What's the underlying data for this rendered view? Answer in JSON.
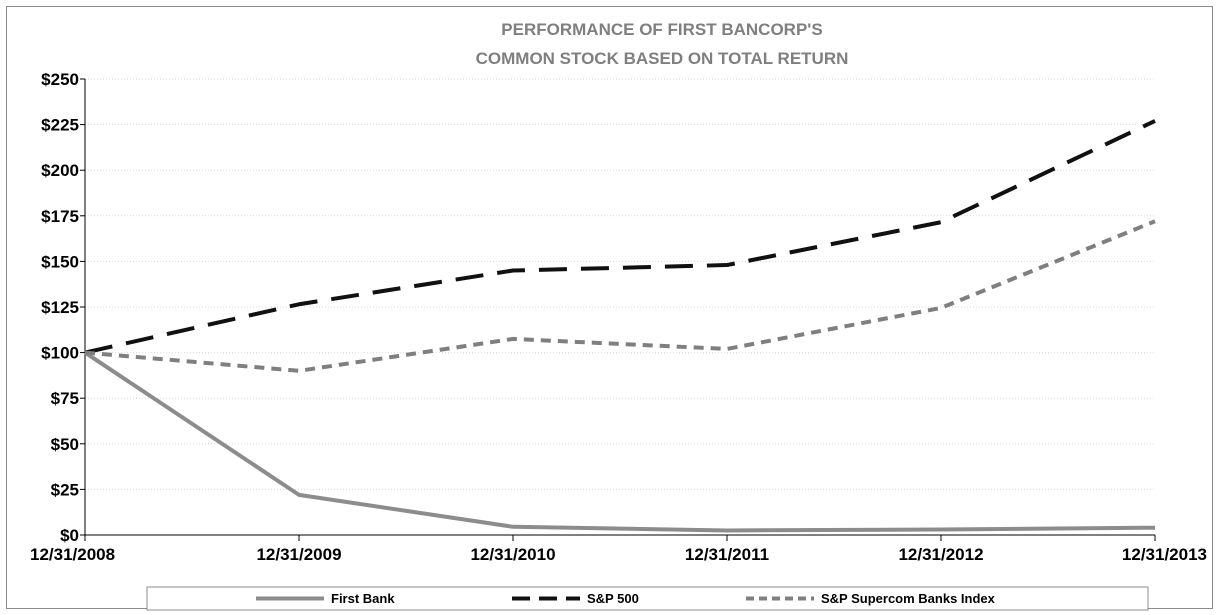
{
  "chart_data": {
    "type": "line",
    "title": [
      "PERFORMANCE OF FIRST BANCORP'S",
      "COMMON STOCK BASED ON TOTAL RETURN"
    ],
    "categories": [
      "12/31/2008",
      "12/31/2009",
      "12/31/2010",
      "12/31/2011",
      "12/31/2012",
      "12/31/2013"
    ],
    "ylim": [
      0,
      250
    ],
    "yticks": [
      0,
      25,
      50,
      75,
      100,
      125,
      150,
      175,
      200,
      225,
      250
    ],
    "ytick_labels": [
      "$0",
      "$25",
      "$50",
      "$75",
      "$100",
      "$125",
      "$150",
      "$175",
      "$200",
      "$225",
      "$250"
    ],
    "grid": true,
    "legend_position": "bottom",
    "series": [
      {
        "name": "First Bank",
        "values": [
          100,
          22,
          4.5,
          2.5,
          3,
          4
        ],
        "color": "#8c8c8c",
        "style": "solid"
      },
      {
        "name": "S&P 500",
        "values": [
          100,
          126.5,
          145,
          148,
          171.5,
          227
        ],
        "color": "#111111",
        "style": "long-dash"
      },
      {
        "name": "S&P Supercom Banks Index",
        "values": [
          100,
          90,
          107.5,
          102,
          124.5,
          172
        ],
        "color": "#7f7f7f",
        "style": "short-dash"
      }
    ]
  }
}
